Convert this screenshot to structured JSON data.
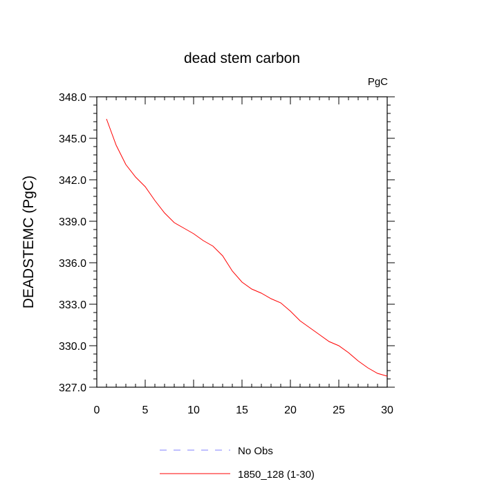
{
  "chart_data": {
    "type": "line",
    "title": "dead stem carbon",
    "units_label": "PgC",
    "xlabel": "",
    "ylabel": "DEADSTEMC  (PgC)",
    "xlim": [
      0,
      30
    ],
    "ylim": [
      327.0,
      348.0
    ],
    "x_ticks": [
      "0",
      "5",
      "10",
      "15",
      "20",
      "25",
      "30"
    ],
    "y_ticks": [
      "327.0",
      "330.0",
      "333.0",
      "336.0",
      "339.0",
      "342.0",
      "345.0",
      "348.0"
    ],
    "grid": false,
    "legend_position": "bottom",
    "series": [
      {
        "name": "No Obs",
        "color": "#7f7fff",
        "dash": "dashed",
        "x": [],
        "values": []
      },
      {
        "name": "1850_128 (1-30)",
        "color": "#ff0000",
        "dash": "solid",
        "x": [
          1,
          2,
          3,
          4,
          5,
          6,
          7,
          8,
          9,
          10,
          11,
          12,
          13,
          14,
          15,
          16,
          17,
          18,
          19,
          20,
          21,
          22,
          23,
          24,
          25,
          26,
          27,
          28,
          29,
          30
        ],
        "values": [
          346.4,
          344.5,
          343.1,
          342.2,
          341.5,
          340.5,
          339.6,
          338.9,
          338.5,
          338.1,
          337.6,
          337.2,
          336.5,
          335.4,
          334.6,
          334.1,
          333.8,
          333.4,
          333.1,
          332.5,
          331.8,
          331.3,
          330.8,
          330.3,
          330.0,
          329.5,
          328.9,
          328.4,
          328.0,
          327.8
        ]
      }
    ]
  }
}
